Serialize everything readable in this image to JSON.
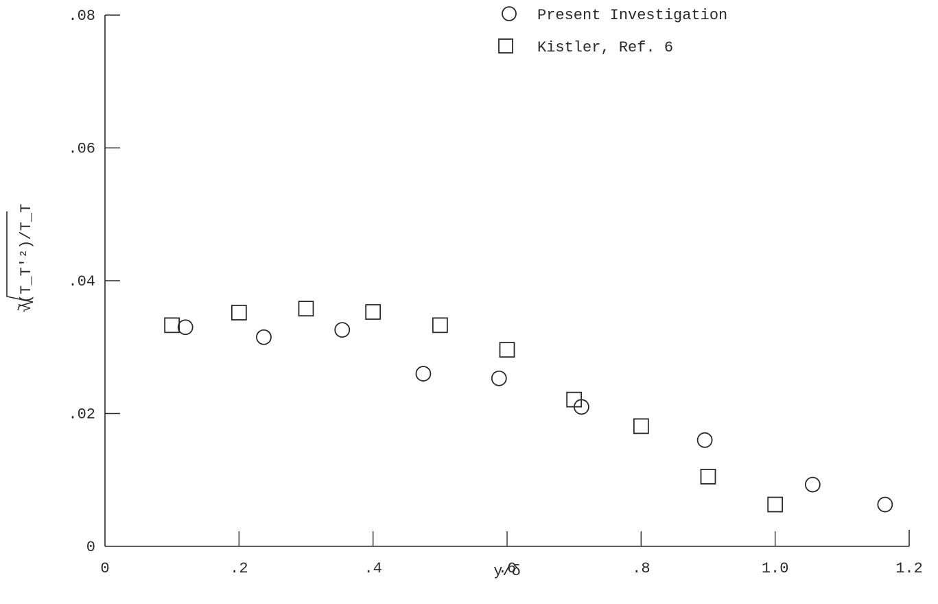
{
  "chart_data": {
    "type": "scatter",
    "xlabel": "y/δ",
    "ylabel": "√(T_T'²)/T_T",
    "xlim": [
      0,
      1.2
    ],
    "ylim": [
      0,
      0.08
    ],
    "x_ticks": [
      {
        "value": 0,
        "label": "0"
      },
      {
        "value": 0.2,
        "label": ".2"
      },
      {
        "value": 0.4,
        "label": ".4"
      },
      {
        "value": 0.6,
        "label": ".6"
      },
      {
        "value": 0.8,
        "label": ".8"
      },
      {
        "value": 1.0,
        "label": "1.0"
      },
      {
        "value": 1.2,
        "label": "1.2"
      }
    ],
    "y_ticks": [
      {
        "value": 0,
        "label": "0"
      },
      {
        "value": 0.02,
        "label": ".02"
      },
      {
        "value": 0.04,
        "label": ".04"
      },
      {
        "value": 0.06,
        "label": ".06"
      },
      {
        "value": 0.08,
        "label": ".08"
      }
    ],
    "grid": false,
    "legend_position": "top-right",
    "series": [
      {
        "name": "Present Investigation",
        "marker": "circle",
        "points": [
          {
            "x": 0.12,
            "y": 0.033
          },
          {
            "x": 0.237,
            "y": 0.0315
          },
          {
            "x": 0.354,
            "y": 0.0326
          },
          {
            "x": 0.475,
            "y": 0.026
          },
          {
            "x": 0.588,
            "y": 0.0253
          },
          {
            "x": 0.711,
            "y": 0.021
          },
          {
            "x": 0.895,
            "y": 0.016
          },
          {
            "x": 1.056,
            "y": 0.0093
          },
          {
            "x": 1.164,
            "y": 0.0063
          }
        ]
      },
      {
        "name": "Kistler, Ref. 6",
        "marker": "square",
        "points": [
          {
            "x": 0.1,
            "y": 0.0333
          },
          {
            "x": 0.2,
            "y": 0.0352
          },
          {
            "x": 0.3,
            "y": 0.0358
          },
          {
            "x": 0.4,
            "y": 0.0353
          },
          {
            "x": 0.5,
            "y": 0.0333
          },
          {
            "x": 0.6,
            "y": 0.0296
          },
          {
            "x": 0.7,
            "y": 0.0221
          },
          {
            "x": 0.8,
            "y": 0.0181
          },
          {
            "x": 0.9,
            "y": 0.0105
          },
          {
            "x": 1.0,
            "y": 0.0063
          }
        ]
      }
    ]
  },
  "colors": {
    "ink": "#2a2a2a",
    "background": "#ffffff"
  }
}
